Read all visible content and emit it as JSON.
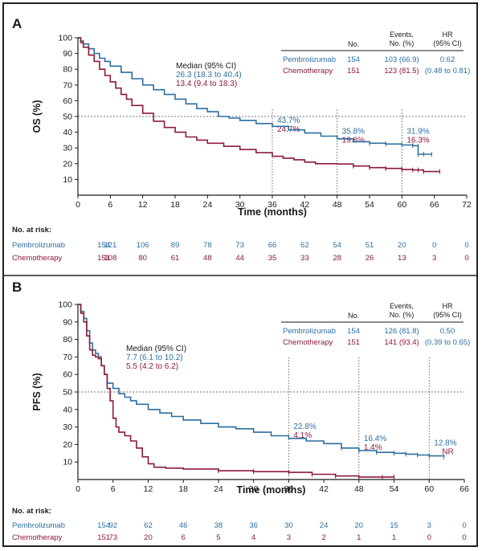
{
  "colors": {
    "pembro": "#2b6fa0",
    "chemo": "#8b1a3a",
    "axis": "#1a1a1a"
  },
  "chart_data": [
    {
      "type": "line",
      "panel_label": "A",
      "ylabel": "OS (%)",
      "xlabel": "Time (months)",
      "xticks": [
        0,
        6,
        12,
        18,
        24,
        30,
        36,
        42,
        48,
        54,
        60,
        66,
        72
      ],
      "yticks": [
        10,
        20,
        30,
        40,
        50,
        60,
        70,
        80,
        90,
        100
      ],
      "xlim": [
        0,
        72
      ],
      "ylim": [
        0,
        100
      ],
      "median_line": 50,
      "median_box": {
        "title": "Median (95% CI)",
        "pembro": "26.3 (18.3 to 40.4)",
        "chemo": "13.4 (9.4 to 18.3)"
      },
      "table": {
        "headers": [
          "No.",
          "Events, No. (%)",
          "HR (95% CI)"
        ],
        "header_lines": [
          [
            "No."
          ],
          [
            "Events,",
            "No. (%)"
          ],
          [
            "HR",
            "(95% CI)"
          ]
        ],
        "rows": [
          {
            "name": "Pembrolizumab",
            "no": "154",
            "events": "103 (66.9)",
            "hr": "0.62"
          },
          {
            "name": "Chemotherapy",
            "no": "151",
            "events": "123 (81.5)",
            "hr": "(0.48 to 0.81)"
          }
        ]
      },
      "landmarks": [
        {
          "x": 36,
          "pembro": "43.7%",
          "chemo": "24.7%"
        },
        {
          "x": 48,
          "pembro": "35.8%",
          "chemo": "19.8%"
        },
        {
          "x": 60,
          "pembro": "31.9%",
          "chemo": "16.3%"
        }
      ],
      "series": [
        {
          "name": "Pembrolizumab",
          "x": [
            0,
            0.5,
            1,
            2,
            3,
            4,
            5,
            6,
            8,
            10,
            12,
            14,
            16,
            18,
            20,
            22,
            24,
            26,
            28,
            30,
            33,
            36,
            39,
            42,
            45,
            48,
            51,
            54,
            57,
            60,
            62,
            63,
            63,
            64,
            65.5
          ],
          "y": [
            100,
            98,
            96,
            93,
            90,
            87,
            85,
            82,
            78,
            74,
            70,
            67,
            64,
            61,
            58,
            55,
            53,
            50,
            49,
            47.5,
            45.5,
            43.7,
            41.5,
            39.5,
            37.5,
            35.8,
            34,
            33,
            32.5,
            31.9,
            31.5,
            31,
            26,
            26,
            26
          ]
        },
        {
          "name": "Chemotherapy",
          "x": [
            0,
            0.5,
            1,
            2,
            3,
            4,
            5,
            6,
            7,
            8,
            9,
            10,
            12,
            14,
            16,
            18,
            20,
            22,
            24,
            27,
            30,
            33,
            36,
            38,
            40,
            42,
            44,
            48,
            51,
            54,
            57,
            60,
            62,
            63,
            64,
            67
          ],
          "y": [
            100,
            97,
            94,
            89,
            85,
            80,
            76,
            72,
            68,
            64,
            61,
            57,
            52,
            47,
            43,
            40,
            37,
            35,
            33,
            31,
            29,
            27,
            24.7,
            23.5,
            22.5,
            21,
            20,
            19.8,
            18.5,
            17.5,
            17,
            16.3,
            16,
            16,
            15,
            15
          ]
        }
      ],
      "risk_table": {
        "title": "No. at risk:",
        "rows": [
          {
            "name": "Pembrolizumab",
            "values": [
              "154",
              "121",
              "106",
              "89",
              "78",
              "73",
              "66",
              "62",
              "54",
              "51",
              "20",
              "0",
              "0"
            ]
          },
          {
            "name": "Chemotherapy",
            "values": [
              "151",
              "108",
              "80",
              "61",
              "48",
              "44",
              "35",
              "33",
              "28",
              "26",
              "13",
              "3",
              "0"
            ]
          }
        ]
      }
    },
    {
      "type": "line",
      "panel_label": "B",
      "ylabel": "PFS (%)",
      "xlabel": "Time (months)",
      "xticks": [
        0,
        6,
        12,
        18,
        24,
        30,
        36,
        42,
        48,
        54,
        60,
        66
      ],
      "yticks": [
        10,
        20,
        30,
        40,
        50,
        60,
        70,
        80,
        90,
        100
      ],
      "xlim": [
        0,
        66
      ],
      "ylim": [
        0,
        100
      ],
      "median_line": 50,
      "median_box": {
        "title": "Median (95% CI)",
        "pembro": "7.7 (6.1 to 10.2)",
        "chemo": "5.5 (4.2 to 6.2)"
      },
      "table": {
        "headers": [
          "No.",
          "Events, No. (%)",
          "HR (95% CI)"
        ],
        "header_lines": [
          [
            "No."
          ],
          [
            "Events,",
            "No. (%)"
          ],
          [
            "HR",
            "(95% CI)"
          ]
        ],
        "rows": [
          {
            "name": "Pembrolizumab",
            "no": "154",
            "events": "126 (81.8)",
            "hr": "0.50"
          },
          {
            "name": "Chemotherapy",
            "no": "151",
            "events": "141 (93.4)",
            "hr": "(0.39 to 0.65)"
          }
        ]
      },
      "landmarks": [
        {
          "x": 36,
          "pembro": "22.8%",
          "chemo": "4.1%"
        },
        {
          "x": 48,
          "pembro": "16.4%",
          "chemo": "1.4%"
        },
        {
          "x": 60,
          "pembro": "12.8%",
          "chemo": "NR"
        }
      ],
      "series": [
        {
          "name": "Pembrolizumab",
          "x": [
            0,
            0.5,
            1,
            1.5,
            2,
            2.5,
            3,
            3.5,
            4,
            4.5,
            5,
            6,
            7,
            8,
            9,
            10,
            12,
            14,
            16,
            18,
            21,
            24,
            27,
            30,
            33,
            36,
            39,
            42,
            45,
            48,
            51,
            54,
            56,
            58,
            60,
            62.5
          ],
          "y": [
            100,
            96,
            92,
            85,
            78,
            74,
            72,
            70,
            65,
            60,
            55,
            52,
            49,
            47,
            45,
            43,
            40,
            38,
            36,
            34,
            32,
            30,
            29,
            27,
            25,
            23.5,
            22,
            20.5,
            18,
            16.5,
            15.5,
            15,
            14.5,
            14,
            13.5,
            13
          ]
        },
        {
          "name": "Chemotherapy",
          "x": [
            0,
            0.5,
            1,
            1.5,
            2,
            2.5,
            3,
            3.5,
            4,
            4.5,
            5,
            5.5,
            6,
            6.5,
            7,
            8,
            9,
            10,
            11,
            12,
            13,
            15,
            18,
            24,
            30,
            36,
            40,
            44,
            48,
            52,
            54
          ],
          "y": [
            100,
            95,
            90,
            82,
            74,
            71,
            70,
            69,
            65,
            60,
            52,
            45,
            35,
            30,
            27,
            25,
            22,
            18,
            13,
            9,
            7,
            6.5,
            6,
            5,
            4.5,
            4.1,
            3,
            2,
            1.4,
            1.4,
            1.4
          ]
        }
      ],
      "risk_table": {
        "title": "No. at risk:",
        "rows": [
          {
            "name": "Pembrolizumab",
            "values": [
              "154",
              "92",
              "62",
              "46",
              "38",
              "36",
              "30",
              "24",
              "20",
              "15",
              "3",
              "0"
            ]
          },
          {
            "name": "Chemotherapy",
            "values": [
              "151",
              "73",
              "20",
              "6",
              "5",
              "4",
              "3",
              "2",
              "1",
              "1",
              "0",
              "0"
            ]
          }
        ]
      }
    }
  ]
}
